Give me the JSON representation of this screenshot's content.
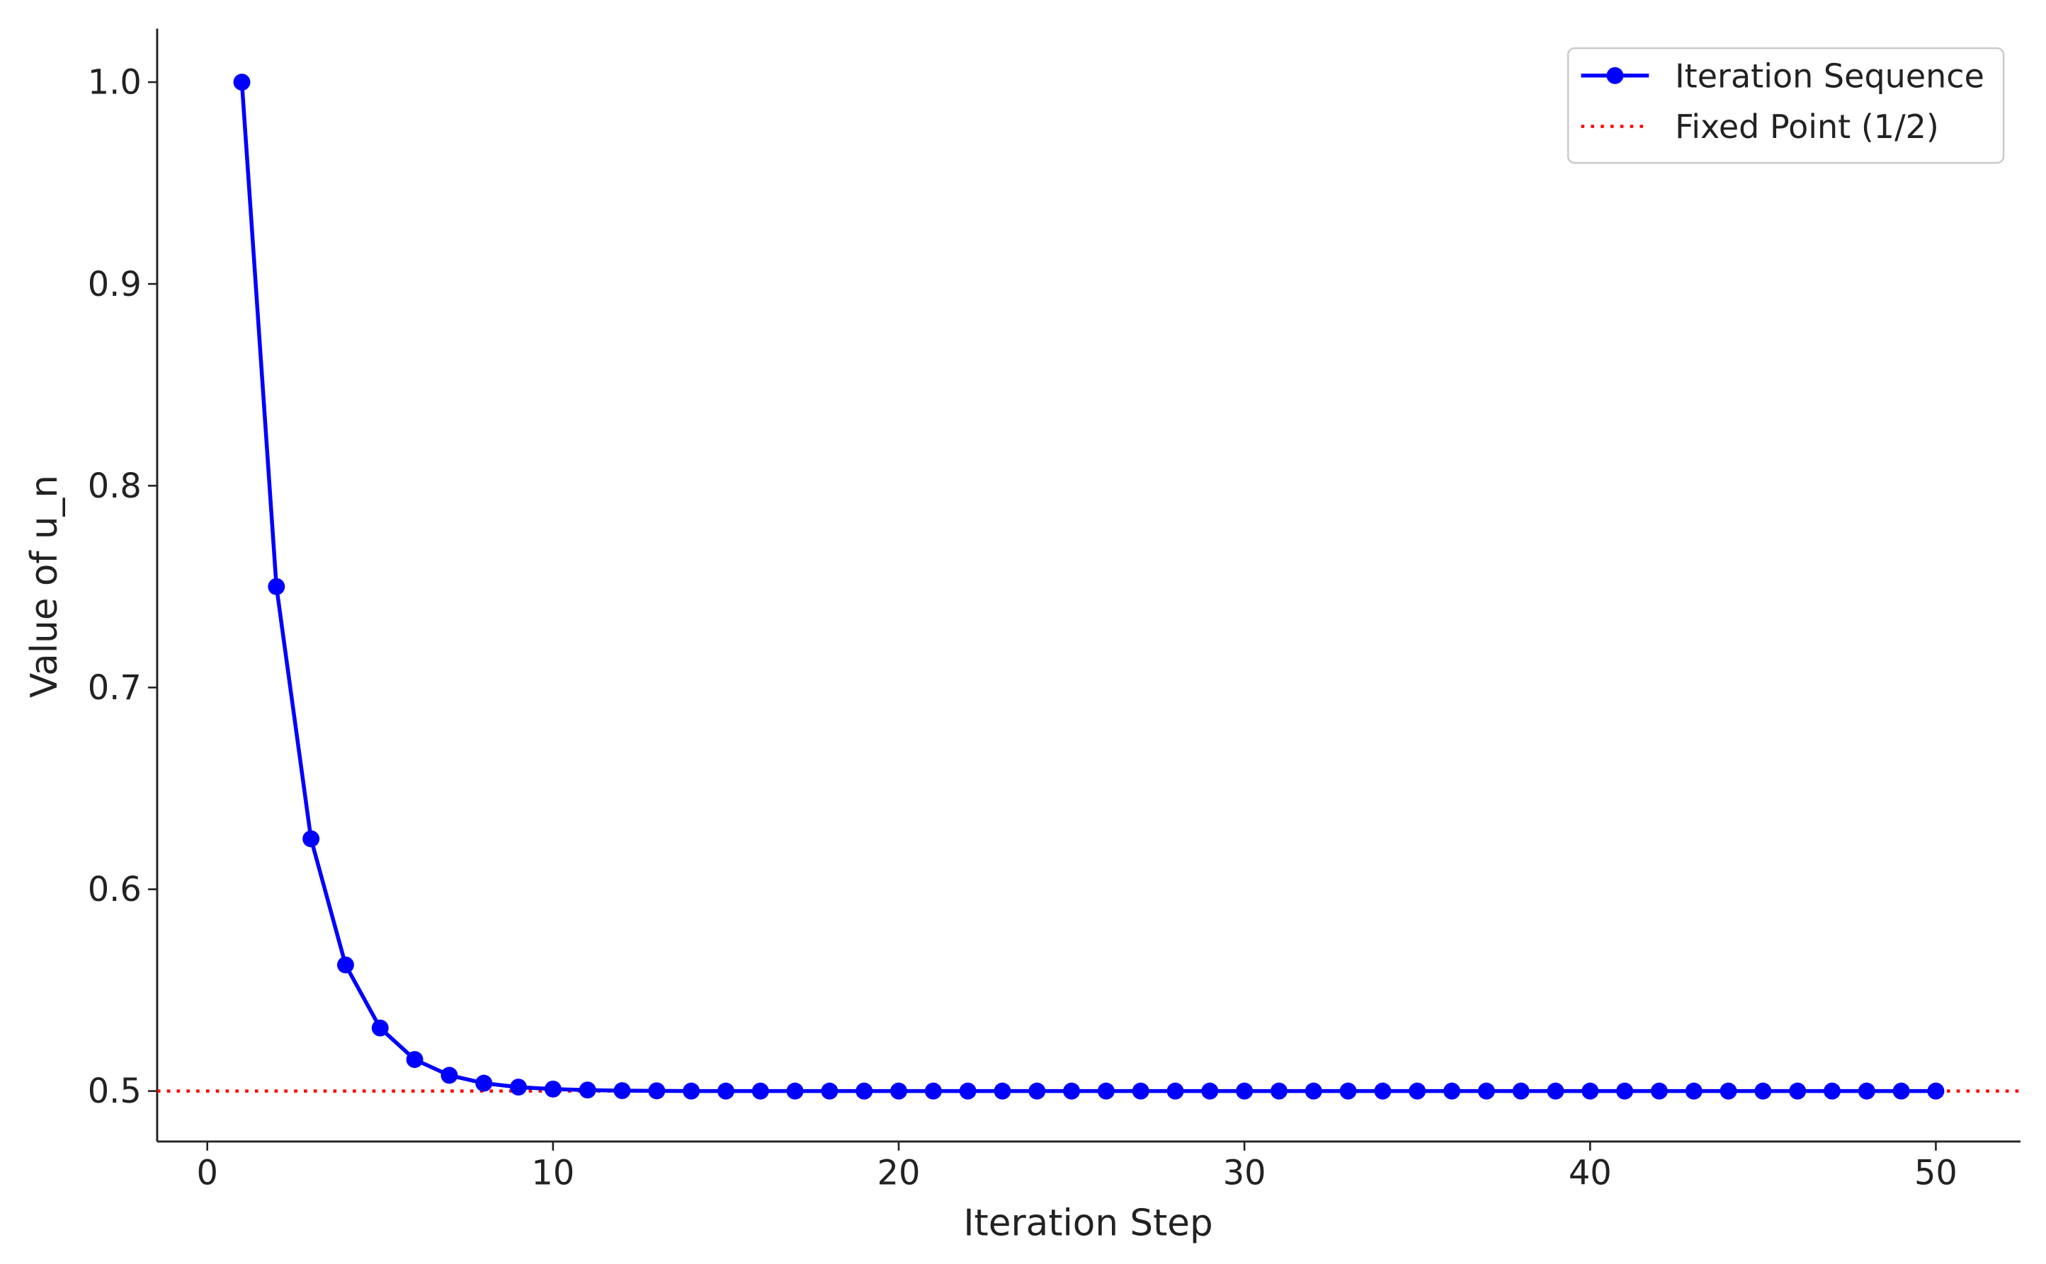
{
  "chart_data": {
    "type": "line",
    "x_label": "Iteration Step",
    "y_label": "Value of u_n",
    "x": [
      1,
      2,
      3,
      4,
      5,
      6,
      7,
      8,
      9,
      10,
      11,
      12,
      13,
      14,
      15,
      16,
      17,
      18,
      19,
      20,
      21,
      22,
      23,
      24,
      25,
      26,
      27,
      28,
      29,
      30,
      31,
      32,
      33,
      34,
      35,
      36,
      37,
      38,
      39,
      40,
      41,
      42,
      43,
      44,
      45,
      46,
      47,
      48,
      49,
      50
    ],
    "series": [
      {
        "name": "Iteration Sequence",
        "color": "#0000ff",
        "values": [
          1.0,
          0.75,
          0.625,
          0.5625,
          0.53125,
          0.515625,
          0.5078125,
          0.50390625,
          0.501953125,
          0.5009765625,
          0.5005,
          0.5002,
          0.5001,
          0.5,
          0.5,
          0.5,
          0.5,
          0.5,
          0.5,
          0.5,
          0.5,
          0.5,
          0.5,
          0.5,
          0.5,
          0.5,
          0.5,
          0.5,
          0.5,
          0.5,
          0.5,
          0.5,
          0.5,
          0.5,
          0.5,
          0.5,
          0.5,
          0.5,
          0.5,
          0.5,
          0.5,
          0.5,
          0.5,
          0.5,
          0.5,
          0.5,
          0.5,
          0.5,
          0.5,
          0.5
        ]
      }
    ],
    "reference_line": {
      "name": "Fixed Point (1/2)",
      "value": 0.5,
      "color": "#ff0000",
      "style": "dotted"
    },
    "xlim": [
      -1.45,
      52.45
    ],
    "ylim": [
      0.475,
      1.0265
    ],
    "xticks": [
      0,
      10,
      20,
      30,
      40,
      50
    ],
    "yticks": [
      {
        "value": 0.5,
        "label": "0.5"
      },
      0.6,
      0.7,
      0.8,
      0.9,
      {
        "value": 1.0,
        "label": "1.0"
      }
    ],
    "legend": "upper right",
    "grid": false
  }
}
